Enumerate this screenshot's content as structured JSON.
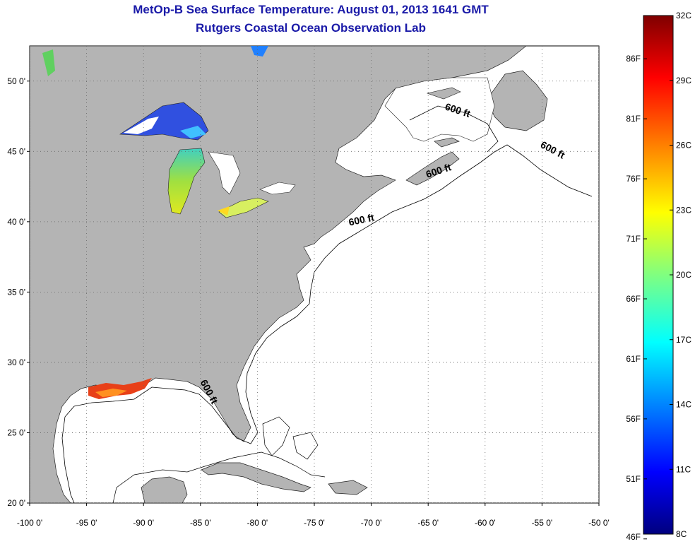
{
  "header": {
    "title": "MetOp-B Sea Surface Temperature:  August 01, 2013 1641 GMT",
    "subtitle": "Rutgers Coastal Ocean Observation Lab"
  },
  "map": {
    "lon_range": [
      -100,
      -50
    ],
    "lat_range": [
      20,
      52.5
    ],
    "lon_ticks": [
      -100,
      -95,
      -90,
      -85,
      -80,
      -75,
      -70,
      -65,
      -60,
      -55,
      -50
    ],
    "lon_labels": [
      "-100 0'",
      "-95 0'",
      "-90 0'",
      "-85 0'",
      "-80 0'",
      "-75 0'",
      "-70 0'",
      "-65 0'",
      "-60 0'",
      "-55 0'",
      "-50 0'"
    ],
    "lat_ticks": [
      20,
      25,
      30,
      35,
      40,
      45,
      50
    ],
    "lat_labels": [
      "20 0'",
      "25 0'",
      "30 0'",
      "35 0'",
      "40 0'",
      "45 0'",
      "50 0'"
    ],
    "grid": "dotted",
    "land_color": "#b4b4b4",
    "ocean_color": "#ffffff",
    "contour_labels": [
      {
        "text": "600 ft",
        "lon": -62.5,
        "lat": 47.7,
        "rot": 18
      },
      {
        "text": "600 ft",
        "lon": -54.2,
        "lat": 44.9,
        "rot": 28
      },
      {
        "text": "600 ft",
        "lon": -64.0,
        "lat": 43.4,
        "rot": -18
      },
      {
        "text": "600 ft",
        "lon": -70.8,
        "lat": 39.9,
        "rot": -12
      },
      {
        "text": "600 ft",
        "lon": -84.5,
        "lat": 27.8,
        "rot": 62
      }
    ]
  },
  "colorbar": {
    "celsius_labels": [
      "32C",
      "29C",
      "26C",
      "23C",
      "20C",
      "17C",
      "14C",
      "11C",
      "8C"
    ],
    "celsius_values": [
      32,
      29,
      26,
      23,
      20,
      17,
      14,
      11,
      8
    ],
    "fahrenheit_labels": [
      "86F",
      "81F",
      "76F",
      "71F",
      "66F",
      "61F",
      "56F",
      "51F",
      "46F"
    ],
    "fahrenheit_values": [
      86,
      81,
      76,
      71,
      66,
      61,
      56,
      51,
      46
    ],
    "range_c": [
      8,
      32
    ],
    "colors": [
      "#00007f",
      "#0000ff",
      "#0080ff",
      "#00ffff",
      "#80ff80",
      "#ffff00",
      "#ff8000",
      "#ff0000",
      "#7f0000"
    ]
  }
}
